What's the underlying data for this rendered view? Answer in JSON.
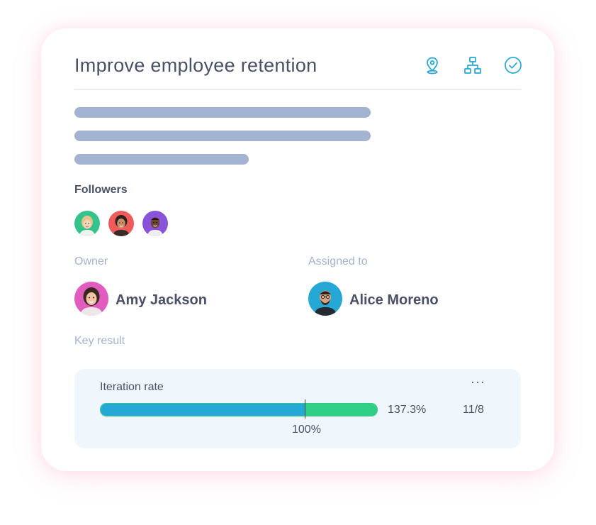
{
  "objective": {
    "title": "Improve employee retention",
    "header_icons": [
      "map-pin-icon",
      "hierarchy-icon",
      "check-circle-icon"
    ]
  },
  "followers": {
    "label": "Followers",
    "avatars": [
      "follower-1",
      "follower-2",
      "follower-3"
    ]
  },
  "owner": {
    "label": "Owner",
    "name": "Amy Jackson"
  },
  "assignee": {
    "label": "Assigned to",
    "name": "Alice Moreno"
  },
  "key_result": {
    "section_label": "Key result",
    "name": "Iteration rate",
    "more_label": "···",
    "percent_text": "137.3%",
    "ratio_text": "11/8",
    "target_label": "100%",
    "progress_fraction": 1.373
  },
  "colors": {
    "accent_blue": "#25a8d5",
    "accent_green": "#2fcf87",
    "skeleton": "#a3b3d2",
    "text_dark": "#4a5066",
    "text_muted": "#a3b3d2"
  }
}
